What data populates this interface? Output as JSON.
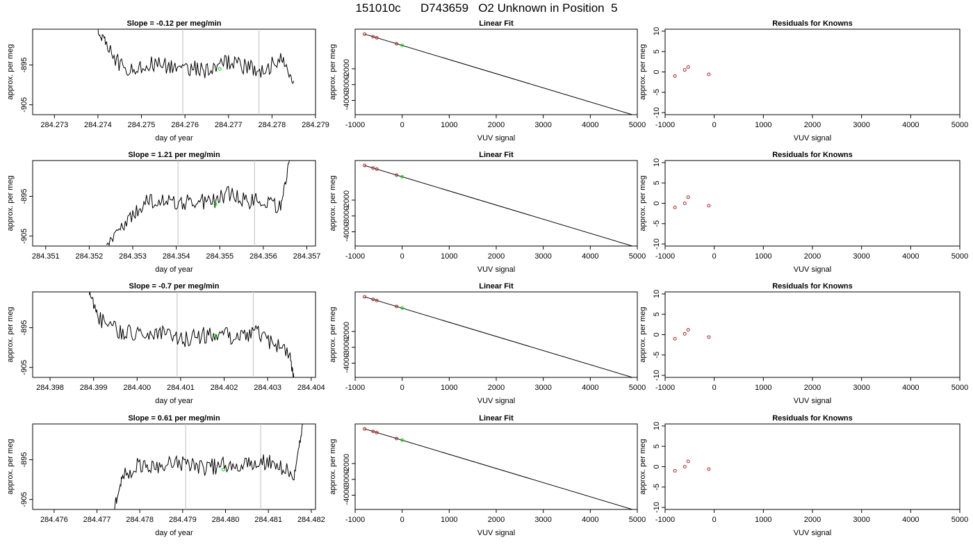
{
  "page": {
    "title": "151010c      D743659   O2 Unknown in Position  5"
  },
  "colors": {
    "trace": "#000000",
    "vline": "#c8c8c8",
    "known_point": "#b22222",
    "unknown_point": "#00dd00",
    "axis": "#000000"
  },
  "chart_data": [
    {
      "type": "line",
      "row": 1,
      "col": 1,
      "title": "Slope =  -0.12  per meg/min",
      "xlabel": "day of year",
      "ylabel": "approx. per meg",
      "xlim": [
        284.2725,
        284.279
      ],
      "ylim": [
        -907.5,
        -886.0
      ],
      "xticks": [
        "284.273",
        "284.274",
        "284.275",
        "284.276",
        "284.277",
        "284.278",
        "284.279"
      ],
      "yticks": [
        "-895",
        "-905"
      ],
      "vlines": [
        284.27595,
        284.2777
      ],
      "points": [
        {
          "x": 284.2768,
          "y": -896.0,
          "role": "unknown"
        }
      ],
      "series": [
        {
          "values_x": [
            284.274,
            284.2742,
            284.2746,
            284.275,
            284.2754,
            284.2758,
            284.2762,
            284.2766,
            284.277,
            284.2774,
            284.2778,
            284.2782,
            284.2785
          ],
          "values_y": [
            -886.0,
            -890.0,
            -896.5,
            -895.0,
            -894.5,
            -896.0,
            -895.5,
            -897.0,
            -894.0,
            -895.5,
            -896.5,
            -893.0,
            -899.0
          ]
        }
      ]
    },
    {
      "type": "line",
      "row": 1,
      "col": 2,
      "title": "Linear Fit",
      "xlabel": "VUV signal",
      "ylabel": "approx. per meg",
      "xlim": [
        -1000,
        5000
      ],
      "ylim": [
        -4900,
        500
      ],
      "xticks": [
        "-1000",
        "0",
        "1000",
        "2000",
        "3000",
        "4000",
        "5000"
      ],
      "yticks": [
        "-2000",
        "-3000",
        "-4000"
      ],
      "fit": {
        "x": [
          -800,
          4950
        ],
        "y": [
          190,
          -4950
        ]
      },
      "known_points": {
        "x": [
          -800,
          -620,
          -540,
          -120
        ],
        "y": [
          190,
          30,
          -45,
          -420
        ]
      },
      "unknown_points": {
        "x": [
          0
        ],
        "y": [
          -520
        ]
      }
    },
    {
      "type": "scatter",
      "row": 1,
      "col": 3,
      "title": "Residuals for Knowns",
      "xlabel": "VUV signal",
      "ylabel": "approx. per meg",
      "xlim": [
        -1000,
        5000
      ],
      "ylim": [
        -10.5,
        10.5
      ],
      "xticks": [
        "-1000",
        "0",
        "1000",
        "2000",
        "3000",
        "4000",
        "5000"
      ],
      "yticks": [
        "10",
        "5",
        "0",
        "-5",
        "-10"
      ],
      "points": {
        "x": [
          -800,
          -600,
          -530,
          -110
        ],
        "y": [
          -1.0,
          0.5,
          1.2,
          -0.6
        ]
      }
    },
    {
      "type": "line",
      "row": 2,
      "col": 1,
      "title": "Slope =  1.21  per meg/min",
      "xlabel": "day of year",
      "ylabel": "approx. per meg",
      "xlim": [
        284.3507,
        284.3572
      ],
      "ylim": [
        -907.5,
        -886.0
      ],
      "xticks": [
        "284.351",
        "284.352",
        "284.353",
        "284.354",
        "284.355",
        "284.356",
        "284.357"
      ],
      "yticks": [
        "-895",
        "-905"
      ],
      "vlines": [
        284.35404,
        284.3558
      ],
      "points": [
        {
          "x": 284.3549,
          "y": -897.0,
          "role": "unknown"
        }
      ],
      "series": [
        {
          "values_x": [
            284.3524,
            284.3528,
            284.3532,
            284.3536,
            284.354,
            284.3544,
            284.3548,
            284.3552,
            284.3556,
            284.356,
            284.3564,
            284.3566
          ],
          "values_y": [
            -907.5,
            -901.5,
            -897.0,
            -895.5,
            -897.0,
            -896.0,
            -896.5,
            -894.5,
            -896.0,
            -896.5,
            -898.0,
            -886.0
          ]
        }
      ]
    },
    {
      "type": "line",
      "row": 2,
      "col": 2,
      "title": "Linear Fit",
      "xlabel": "VUV signal",
      "ylabel": "approx. per meg",
      "xlim": [
        -1000,
        5000
      ],
      "ylim": [
        -4900,
        500
      ],
      "xticks": [
        "-1000",
        "0",
        "1000",
        "2000",
        "3000",
        "4000",
        "5000"
      ],
      "yticks": [
        "-2000",
        "-3000",
        "-4000"
      ],
      "fit": {
        "x": [
          -800,
          4950
        ],
        "y": [
          190,
          -4950
        ]
      },
      "known_points": {
        "x": [
          -800,
          -620,
          -540,
          -120
        ],
        "y": [
          190,
          30,
          -45,
          -420
        ]
      },
      "unknown_points": {
        "x": [
          0
        ],
        "y": [
          -520
        ]
      }
    },
    {
      "type": "scatter",
      "row": 2,
      "col": 3,
      "title": "Residuals for Knowns",
      "xlabel": "VUV signal",
      "ylabel": "approx. per meg",
      "xlim": [
        -1000,
        5000
      ],
      "ylim": [
        -10.5,
        10.5
      ],
      "xticks": [
        "-1000",
        "0",
        "1000",
        "2000",
        "3000",
        "4000",
        "5000"
      ],
      "yticks": [
        "10",
        "5",
        "0",
        "-5",
        "-10"
      ],
      "points": {
        "x": [
          -800,
          -600,
          -530,
          -110
        ],
        "y": [
          -1.0,
          0.0,
          1.5,
          -0.6
        ]
      }
    },
    {
      "type": "line",
      "row": 3,
      "col": 1,
      "title": "Slope =  -0.7  per meg/min",
      "xlabel": "day of year",
      "ylabel": "approx. per meg",
      "xlim": [
        284.3976,
        284.4041
      ],
      "ylim": [
        -907.5,
        -886.0
      ],
      "xticks": [
        "284.398",
        "284.399",
        "284.400",
        "284.401",
        "284.402",
        "284.403",
        "284.404"
      ],
      "yticks": [
        "-895",
        "-905"
      ],
      "vlines": [
        284.40092,
        284.40267
      ],
      "points": [
        {
          "x": 284.4018,
          "y": -897.0,
          "role": "unknown"
        }
      ],
      "series": [
        {
          "values_x": [
            284.3989,
            284.3991,
            284.3995,
            284.3999,
            284.4003,
            284.4007,
            284.4011,
            284.4015,
            284.4019,
            284.4023,
            284.4027,
            284.4031,
            284.4035,
            284.4036
          ],
          "values_y": [
            -886.0,
            -892.5,
            -895.5,
            -896.5,
            -897.0,
            -896.0,
            -898.0,
            -897.0,
            -896.5,
            -897.5,
            -896.0,
            -899.0,
            -901.5,
            -907.5
          ]
        }
      ]
    },
    {
      "type": "line",
      "row": 3,
      "col": 2,
      "title": "Linear Fit",
      "xlabel": "VUV signal",
      "ylabel": "approx. per meg",
      "xlim": [
        -1000,
        5000
      ],
      "ylim": [
        -4900,
        500
      ],
      "xticks": [
        "-1000",
        "0",
        "1000",
        "2000",
        "3000",
        "4000",
        "5000"
      ],
      "yticks": [
        "-2000",
        "-3000",
        "-4000"
      ],
      "fit": {
        "x": [
          -800,
          4950
        ],
        "y": [
          190,
          -4950
        ]
      },
      "known_points": {
        "x": [
          -800,
          -620,
          -540,
          -120
        ],
        "y": [
          190,
          30,
          -45,
          -420
        ]
      },
      "unknown_points": {
        "x": [
          0
        ],
        "y": [
          -520
        ]
      }
    },
    {
      "type": "scatter",
      "row": 3,
      "col": 3,
      "title": "Residuals for Knowns",
      "xlabel": "VUV signal",
      "ylabel": "approx. per meg",
      "xlim": [
        -1000,
        5000
      ],
      "ylim": [
        -10.5,
        10.5
      ],
      "xticks": [
        "-1000",
        "0",
        "1000",
        "2000",
        "3000",
        "4000",
        "5000"
      ],
      "yticks": [
        "10",
        "5",
        "0",
        "-5",
        "-10"
      ],
      "points": {
        "x": [
          -800,
          -600,
          -530,
          -110
        ],
        "y": [
          -1.0,
          0.2,
          1.2,
          -0.6
        ]
      }
    },
    {
      "type": "line",
      "row": 4,
      "col": 1,
      "title": "Slope =  0.61  per meg/min",
      "xlabel": "day of year",
      "ylabel": "approx. per meg",
      "xlim": [
        284.4755,
        284.4821
      ],
      "ylim": [
        -907.5,
        -886.0
      ],
      "xticks": [
        "284.476",
        "284.477",
        "284.478",
        "284.479",
        "284.480",
        "284.481",
        "284.482"
      ],
      "yticks": [
        "-895",
        "-905"
      ],
      "vlines": [
        284.47907,
        284.48082
      ],
      "points": [
        {
          "x": 284.47995,
          "y": -897.5,
          "role": "unknown"
        }
      ],
      "series": [
        {
          "values_x": [
            284.4774,
            284.4776,
            284.478,
            284.4784,
            284.4788,
            284.4792,
            284.4796,
            284.48,
            284.4804,
            284.4808,
            284.4812,
            284.4816,
            284.4818
          ],
          "values_y": [
            -907.5,
            -899.0,
            -896.0,
            -897.0,
            -896.0,
            -896.5,
            -897.0,
            -896.0,
            -896.5,
            -895.5,
            -896.0,
            -899.5,
            -886.0
          ]
        }
      ]
    },
    {
      "type": "line",
      "row": 4,
      "col": 2,
      "title": "Linear Fit",
      "xlabel": "VUV signal",
      "ylabel": "approx. per meg",
      "xlim": [
        -1000,
        5000
      ],
      "ylim": [
        -4900,
        500
      ],
      "xticks": [
        "-1000",
        "0",
        "1000",
        "2000",
        "3000",
        "4000",
        "5000"
      ],
      "yticks": [
        "-2000",
        "-3000",
        "-4000"
      ],
      "fit": {
        "x": [
          -800,
          4950
        ],
        "y": [
          190,
          -4950
        ]
      },
      "known_points": {
        "x": [
          -800,
          -620,
          -540,
          -120
        ],
        "y": [
          190,
          30,
          -45,
          -420
        ]
      },
      "unknown_points": {
        "x": [
          0
        ],
        "y": [
          -520
        ]
      }
    },
    {
      "type": "scatter",
      "row": 4,
      "col": 3,
      "title": "Residuals for Knowns",
      "xlabel": "VUV signal",
      "ylabel": "approx. per meg",
      "xlim": [
        -1000,
        5000
      ],
      "ylim": [
        -10.5,
        10.5
      ],
      "xticks": [
        "-1000",
        "0",
        "1000",
        "2000",
        "3000",
        "4000",
        "5000"
      ],
      "yticks": [
        "10",
        "5",
        "0",
        "-5",
        "-10"
      ],
      "points": {
        "x": [
          -800,
          -600,
          -530,
          -110
        ],
        "y": [
          -1.0,
          0.0,
          1.3,
          -0.6
        ]
      }
    }
  ]
}
